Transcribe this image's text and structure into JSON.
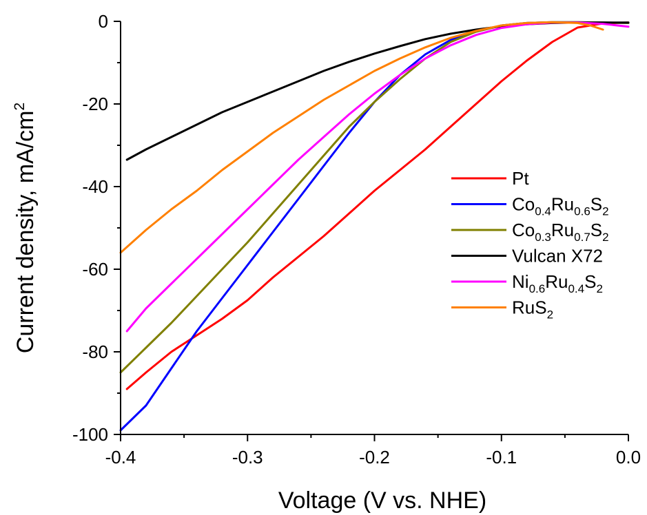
{
  "chart_data": {
    "type": "line",
    "title": "",
    "xlabel": "Voltage (V vs. NHE)",
    "ylabel": {
      "base": "Current density, mA/cm",
      "sup": "2"
    },
    "xlim": [
      -0.4,
      0.0
    ],
    "ylim": [
      -100,
      0
    ],
    "xticks": [
      -0.4,
      -0.3,
      -0.2,
      -0.1,
      0.0
    ],
    "xtick_labels": [
      "-0.4",
      "-0.3",
      "-0.2",
      "-0.1",
      "0.0"
    ],
    "yticks": [
      0,
      -20,
      -40,
      -60,
      -80,
      -100
    ],
    "ytick_labels": [
      "0",
      "-20",
      "-40",
      "-60",
      "-80",
      "-100"
    ],
    "grid": false,
    "legend_position": "right",
    "series": [
      {
        "name": "Pt",
        "label_parts": [
          {
            "t": "Pt",
            "s": "n"
          }
        ],
        "color": "#ff0000",
        "x": [
          -0.395,
          -0.38,
          -0.36,
          -0.34,
          -0.32,
          -0.3,
          -0.28,
          -0.26,
          -0.24,
          -0.22,
          -0.2,
          -0.18,
          -0.16,
          -0.14,
          -0.12,
          -0.1,
          -0.08,
          -0.06,
          -0.04,
          -0.02,
          0.0
        ],
        "y": [
          -89,
          -85,
          -80,
          -76,
          -72,
          -67.5,
          -62,
          -57,
          -52,
          -46.5,
          -41,
          -36,
          -31,
          -25.5,
          -20,
          -14.5,
          -9.5,
          -5,
          -1.5,
          -0.5,
          -0.3
        ]
      },
      {
        "name": "Co0.4Ru0.6S2",
        "label_parts": [
          {
            "t": "Co",
            "s": "n"
          },
          {
            "t": "0.4",
            "s": "b"
          },
          {
            "t": "Ru",
            "s": "n"
          },
          {
            "t": "0.6",
            "s": "b"
          },
          {
            "t": "S",
            "s": "n"
          },
          {
            "t": "2",
            "s": "b"
          }
        ],
        "color": "#0000ff",
        "x": [
          -0.4,
          -0.38,
          -0.36,
          -0.34,
          -0.32,
          -0.3,
          -0.28,
          -0.26,
          -0.24,
          -0.22,
          -0.2,
          -0.18,
          -0.16,
          -0.14,
          -0.12,
          -0.1,
          -0.08,
          -0.06,
          -0.04,
          -0.02,
          0.0
        ],
        "y": [
          -99,
          -93,
          -84,
          -75,
          -67,
          -59,
          -51,
          -43,
          -35,
          -27,
          -19.5,
          -13,
          -8,
          -4.5,
          -2.5,
          -1,
          -0.4,
          -0.2,
          -0.2,
          -0.3,
          -0.4
        ]
      },
      {
        "name": "Co0.3Ru0.7S2",
        "label_parts": [
          {
            "t": "Co",
            "s": "n"
          },
          {
            "t": "0.3",
            "s": "b"
          },
          {
            "t": "Ru",
            "s": "n"
          },
          {
            "t": "0.7",
            "s": "b"
          },
          {
            "t": "S",
            "s": "n"
          },
          {
            "t": "2",
            "s": "b"
          }
        ],
        "color": "#808000",
        "x": [
          -0.4,
          -0.38,
          -0.36,
          -0.34,
          -0.32,
          -0.3,
          -0.28,
          -0.26,
          -0.24,
          -0.22,
          -0.2,
          -0.18,
          -0.16,
          -0.14,
          -0.12,
          -0.1,
          -0.08,
          -0.06,
          -0.04,
          -0.02,
          0.0
        ],
        "y": [
          -85,
          -79,
          -73,
          -66.5,
          -60,
          -53.5,
          -46.5,
          -39.5,
          -32.5,
          -25.5,
          -19.5,
          -14,
          -9,
          -5,
          -2.5,
          -1,
          -0.4,
          -0.2,
          -0.2,
          -0.3,
          -0.4
        ]
      },
      {
        "name": "Vulcan X72",
        "label_parts": [
          {
            "t": "Vulcan X72",
            "s": "n"
          }
        ],
        "color": "#000000",
        "x": [
          -0.395,
          -0.38,
          -0.36,
          -0.34,
          -0.32,
          -0.3,
          -0.28,
          -0.26,
          -0.24,
          -0.22,
          -0.2,
          -0.18,
          -0.16,
          -0.14,
          -0.12,
          -0.1,
          -0.08,
          -0.06,
          -0.04,
          -0.02,
          0.0
        ],
        "y": [
          -33.5,
          -31,
          -28,
          -25,
          -22,
          -19.5,
          -17,
          -14.5,
          -12,
          -9.8,
          -7.8,
          -6,
          -4.3,
          -3,
          -2,
          -1.2,
          -0.7,
          -0.4,
          -0.3,
          -0.3,
          -0.3
        ]
      },
      {
        "name": "Ni0.6Ru0.4S2",
        "label_parts": [
          {
            "t": "Ni",
            "s": "n"
          },
          {
            "t": "0.6",
            "s": "b"
          },
          {
            "t": "Ru",
            "s": "n"
          },
          {
            "t": "0.4",
            "s": "b"
          },
          {
            "t": "S",
            "s": "n"
          },
          {
            "t": "2",
            "s": "b"
          }
        ],
        "color": "#ff00ff",
        "x": [
          -0.395,
          -0.38,
          -0.36,
          -0.34,
          -0.32,
          -0.3,
          -0.28,
          -0.26,
          -0.24,
          -0.22,
          -0.2,
          -0.18,
          -0.16,
          -0.14,
          -0.12,
          -0.1,
          -0.08,
          -0.06,
          -0.04,
          -0.02,
          0.0
        ],
        "y": [
          -75,
          -69.5,
          -63.5,
          -57.5,
          -51.5,
          -45.5,
          -39.5,
          -33.5,
          -28,
          -22.5,
          -17.5,
          -13,
          -9,
          -5.8,
          -3.3,
          -1.6,
          -0.7,
          -0.3,
          -0.3,
          -0.6,
          -1.3
        ]
      },
      {
        "name": "RuS2",
        "label_parts": [
          {
            "t": "RuS",
            "s": "n"
          },
          {
            "t": "2",
            "s": "b"
          }
        ],
        "color": "#ff8000",
        "x": [
          -0.4,
          -0.38,
          -0.36,
          -0.34,
          -0.32,
          -0.3,
          -0.28,
          -0.26,
          -0.24,
          -0.22,
          -0.2,
          -0.18,
          -0.16,
          -0.14,
          -0.12,
          -0.1,
          -0.08,
          -0.06,
          -0.04,
          -0.03,
          -0.02
        ],
        "y": [
          -56,
          -50.5,
          -45.5,
          -41,
          -36,
          -31.5,
          -27,
          -23,
          -19,
          -15.5,
          -12,
          -9,
          -6.3,
          -4,
          -2.3,
          -1,
          -0.4,
          -0.2,
          -0.4,
          -1,
          -2
        ]
      }
    ]
  }
}
